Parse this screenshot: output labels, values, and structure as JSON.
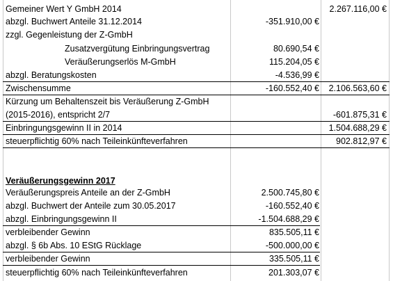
{
  "rows": [
    {
      "label": "Gemeiner Wert Y GmbH 2014",
      "b": "",
      "c": "2.267.116,00 €"
    },
    {
      "label": "abzgl. Buchwert Anteile 31.12.2014",
      "b": "-351.910,00 €",
      "c": ""
    },
    {
      "label": "zzgl. Gegenleistung der Z-GmbH",
      "b": "",
      "c": ""
    },
    {
      "label": "Zusatzvergütung Einbringungsvertrag",
      "b": "80.690,54 €",
      "c": ""
    },
    {
      "label": "Veräußerungserlös M-GmbH",
      "b": "115.204,05 €",
      "c": ""
    },
    {
      "label": "abzgl. Beratungskosten",
      "b": "-4.536,99 €",
      "c": ""
    },
    {
      "label": "Zwischensumme",
      "b": "-160.552,40 €",
      "c": "2.106.563,60 €"
    },
    {
      "label": "Kürzung um Behaltenszeit bis Veräußerung Z-GmbH",
      "b": "",
      "c": ""
    },
    {
      "label": "(2015-2016), entspricht 2/7",
      "b": "",
      "c": "-601.875,31 €"
    },
    {
      "label": "Einbringungsgewinn II in 2014",
      "b": "",
      "c": "1.504.688,29 €"
    },
    {
      "label": "steuerpflichtig 60% nach Teileinkünfteverfahren",
      "b": "",
      "c": "902.812,97 €"
    },
    {
      "label": "",
      "b": "",
      "c": ""
    },
    {
      "label": "",
      "b": "",
      "c": ""
    },
    {
      "label": "Veräußerungsgewinn 2017",
      "b": "",
      "c": ""
    },
    {
      "label": "Veräußerungspreis Anteile an der Z-GmbH",
      "b": "2.500.745,80 €",
      "c": ""
    },
    {
      "label": "abzgl. Buchwert der Anteile zum 30.05.2017",
      "b": "-160.552,40 €",
      "c": ""
    },
    {
      "label": "abzgl. Einbringungsgewinn II",
      "b": "-1.504.688,29 €",
      "c": ""
    },
    {
      "label": "verbleibender Gewinn",
      "b": "835.505,11 €",
      "c": ""
    },
    {
      "label": "abzgl. § 6b Abs. 10 EStG Rücklage",
      "b": "-500.000,00 €",
      "c": ""
    },
    {
      "label": "verbleibender Gewinn",
      "b": "335.505,11 €",
      "c": ""
    },
    {
      "label": "steuerpflichtig 60% nach Teileinkünfteverfahren",
      "b": "201.303,07 €",
      "c": ""
    }
  ],
  "colors": {
    "gridline": "#c8c8c8",
    "rule": "#000000"
  }
}
